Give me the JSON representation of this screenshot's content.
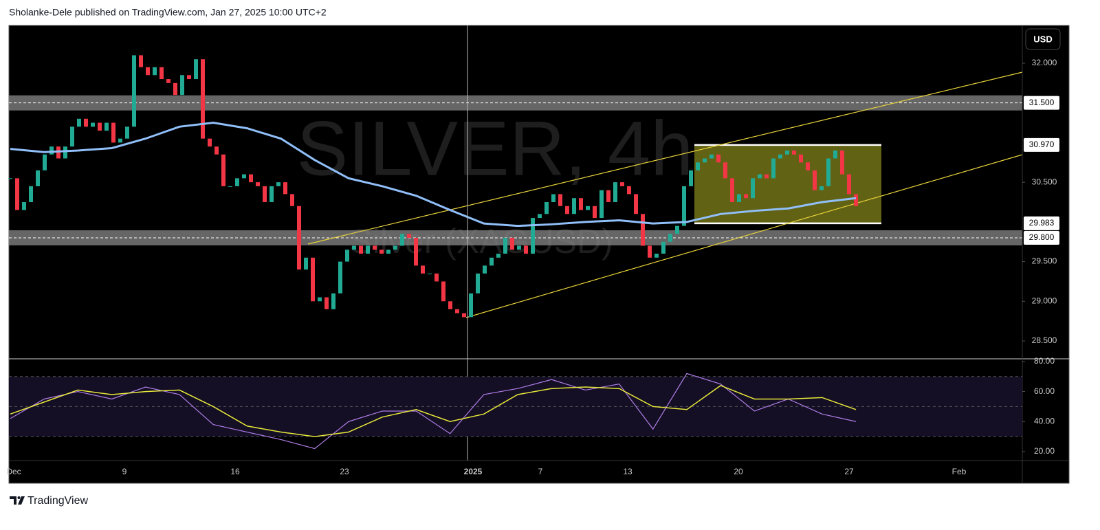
{
  "header": {
    "text": "Sholanke-Dele published on TradingView.com, Jan 27, 2025 10:00 UTC+2"
  },
  "footer": {
    "brand": "TradingView"
  },
  "chart_data": {
    "type": "candlestick",
    "watermark": "SILVER, 4h",
    "watermark_subtitle": "Silver (XAGUSD)",
    "currency": "USD",
    "up_color": "#22ab94",
    "down_color": "#f23645",
    "closes": [
      30.55,
      30.15,
      30.25,
      30.45,
      30.65,
      30.85,
      30.95,
      30.8,
      30.95,
      31.2,
      31.3,
      31.2,
      31.25,
      31.15,
      31.25,
      31.0,
      31.05,
      31.2,
      32.1,
      31.95,
      31.85,
      31.95,
      31.8,
      31.75,
      31.6,
      31.85,
      31.8,
      32.05,
      31.05,
      30.95,
      30.85,
      30.45,
      30.45,
      30.55,
      30.6,
      30.5,
      30.45,
      30.25,
      30.45,
      30.5,
      30.35,
      30.2,
      29.4,
      29.55,
      29.0,
      29.05,
      28.9,
      29.1,
      29.5,
      29.65,
      29.7,
      29.6,
      29.7,
      29.65,
      29.6,
      29.65,
      29.7,
      29.85,
      29.8,
      29.45,
      29.35,
      29.35,
      29.25,
      29.0,
      28.9,
      28.85,
      28.8,
      29.1,
      29.35,
      29.45,
      29.55,
      29.6,
      29.8,
      29.65,
      29.7,
      29.6,
      30.05,
      30.1,
      30.25,
      30.35,
      30.2,
      30.1,
      30.3,
      30.15,
      30.2,
      30.05,
      30.4,
      30.25,
      30.5,
      30.45,
      30.35,
      30.1,
      29.7,
      29.55,
      29.6,
      29.75,
      29.85,
      29.95,
      30.45,
      30.65,
      30.75,
      30.8,
      30.85,
      30.75,
      30.55,
      30.25,
      30.35,
      30.3,
      30.55,
      30.6,
      30.55,
      30.8,
      30.85,
      30.9,
      30.85,
      30.75,
      30.65,
      30.4,
      30.45,
      30.8,
      30.9,
      30.6,
      30.35,
      30.2
    ],
    "ma": {
      "color": "#90bff9",
      "values": [
        30.92,
        30.88,
        30.9,
        30.93,
        31.05,
        31.2,
        31.25,
        31.18,
        31.05,
        30.78,
        30.55,
        30.45,
        30.33,
        30.15,
        29.98,
        29.95,
        29.97,
        30.0,
        30.02,
        29.98,
        30.0,
        30.1,
        30.14,
        30.17,
        30.25,
        30.3
      ]
    },
    "ylim": [
      28.275,
      32.476
    ],
    "yticks": [
      {
        "value": 32,
        "label": "32.000"
      },
      {
        "value": 30.5,
        "label": "30.500"
      },
      {
        "value": 29.5,
        "label": "29.500"
      },
      {
        "value": 29,
        "label": "29.000"
      },
      {
        "value": 28.5,
        "label": "28.500"
      }
    ],
    "levels": [
      {
        "value": 31.5,
        "label": "31.500"
      },
      {
        "value": 30.97,
        "label": "30.970"
      },
      {
        "value": 29.983,
        "label": "29.983"
      },
      {
        "value": 29.8,
        "label": "29.800"
      }
    ],
    "rsi": {
      "color": "#b07ee8",
      "signal_color": "#e8e83a",
      "values": [
        42,
        55,
        60,
        55,
        63,
        58,
        38,
        33,
        28,
        22,
        40,
        47,
        47,
        32,
        58,
        62,
        68,
        61,
        65,
        35,
        72,
        65,
        47,
        55,
        45,
        40
      ],
      "signal": [
        45,
        53,
        61,
        58,
        60,
        61,
        50,
        37,
        33,
        30,
        33,
        43,
        48,
        40,
        45,
        58,
        62,
        63,
        62,
        50,
        48,
        64,
        55,
        55,
        56,
        48
      ],
      "ylim": [
        14.0,
        81.8
      ],
      "yticks": [
        {
          "value": 80,
          "label": "80.00"
        },
        {
          "value": 60,
          "label": "60.00"
        },
        {
          "value": 40,
          "label": "40.00"
        },
        {
          "value": 20,
          "label": "20.00"
        }
      ]
    },
    "x_labels": [
      "Dec",
      "9",
      "16",
      "23",
      "2025",
      "7",
      "13",
      "20",
      "27",
      "Feb"
    ]
  }
}
